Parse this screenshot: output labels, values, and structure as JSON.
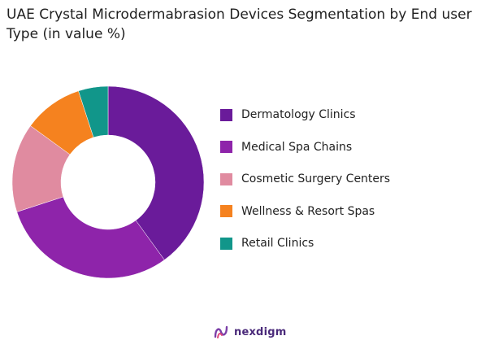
{
  "title": "UAE Crystal Microdermabrasion Devices  Segmentation by End user Type (in value %)",
  "brand": {
    "name": "nexdigm",
    "icon": "nexdigm-logo-icon"
  },
  "chart_data": {
    "type": "pie",
    "donut": true,
    "title": "UAE Crystal Microdermabrasion Devices  Segmentation by End user Type (in value %)",
    "legend_position": "right",
    "categories": [
      "Dermatology Clinics",
      "Medical Spa Chains",
      "Cosmetic Surgery Centers",
      "Wellness & Resort Spas",
      "Retail Clinics"
    ],
    "values": [
      40,
      30,
      15,
      10,
      5
    ],
    "colors": [
      "#6a1b9a",
      "#8e24aa",
      "#e08ba0",
      "#f5821f",
      "#11968a"
    ]
  }
}
